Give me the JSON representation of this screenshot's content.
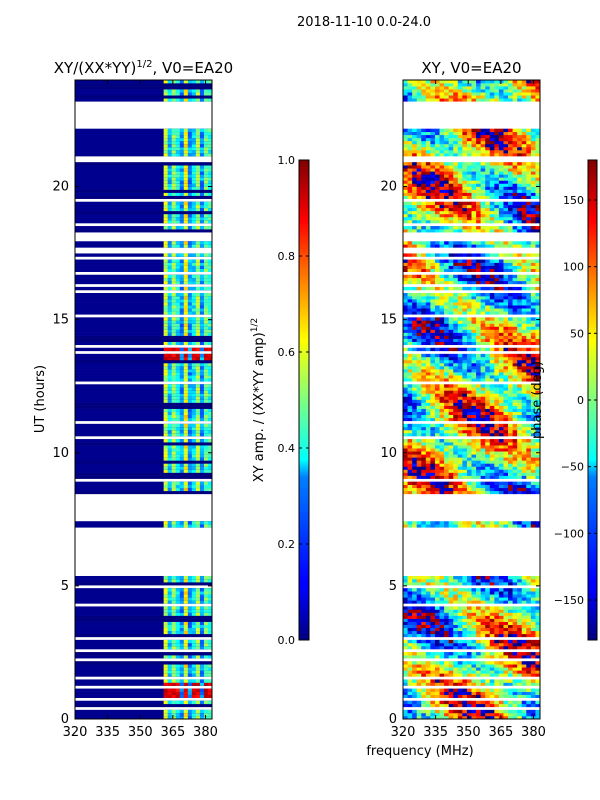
{
  "figure": {
    "suptitle": "2018-11-10 0.0-24.0",
    "xlabel": "frequency (MHz)"
  },
  "chart_data": [
    {
      "type": "heatmap",
      "title": "XY/(XX*YY)",
      "title_exponent": "1/2",
      "title_suffix": ", V0=EA20",
      "ylabel": "UT (hours)",
      "xlim": [
        320,
        383
      ],
      "ylim": [
        0,
        24
      ],
      "xticks": [
        320,
        335,
        350,
        365,
        380
      ],
      "yticks": [
        0,
        5,
        10,
        15,
        20
      ],
      "colorbar": {
        "label": "XY amp. / (XX*YY amp)",
        "label_exponent": "1/2",
        "range": [
          0,
          1
        ],
        "ticks": [
          "0.0",
          "0.2",
          "0.4",
          "0.6",
          "0.8",
          "1.0"
        ],
        "tick_values": [
          0,
          0.2,
          0.4,
          0.6,
          0.8,
          1.0
        ]
      },
      "hot_band_mhz": [
        360.5,
        383
      ],
      "hot_channels_mhz": [
        362,
        366,
        371,
        376,
        381
      ],
      "peak_times_ut": [
        1.0,
        13.7
      ],
      "data_gaps_ut": [
        [
          5.55,
          7.2
        ],
        [
          7.45,
          8.45
        ],
        [
          22.3,
          23.15
        ]
      ]
    },
    {
      "type": "heatmap",
      "title": "XY, V0=EA20",
      "xlim": [
        320,
        383
      ],
      "ylim": [
        0,
        24
      ],
      "xticks": [
        320,
        335,
        350,
        365,
        380
      ],
      "yticks": [
        0,
        5,
        10,
        15,
        20
      ],
      "colorbar": {
        "label": "phase (deg)",
        "range": [
          -180,
          180
        ],
        "ticks": [
          "150",
          "100",
          "50",
          "0",
          "−50",
          "−100",
          "−150"
        ],
        "tick_values": [
          150,
          100,
          50,
          0,
          -50,
          -100,
          -150
        ]
      },
      "data_gaps_ut": [
        [
          5.55,
          7.2
        ],
        [
          7.45,
          8.45
        ],
        [
          22.3,
          23.15
        ]
      ]
    }
  ]
}
